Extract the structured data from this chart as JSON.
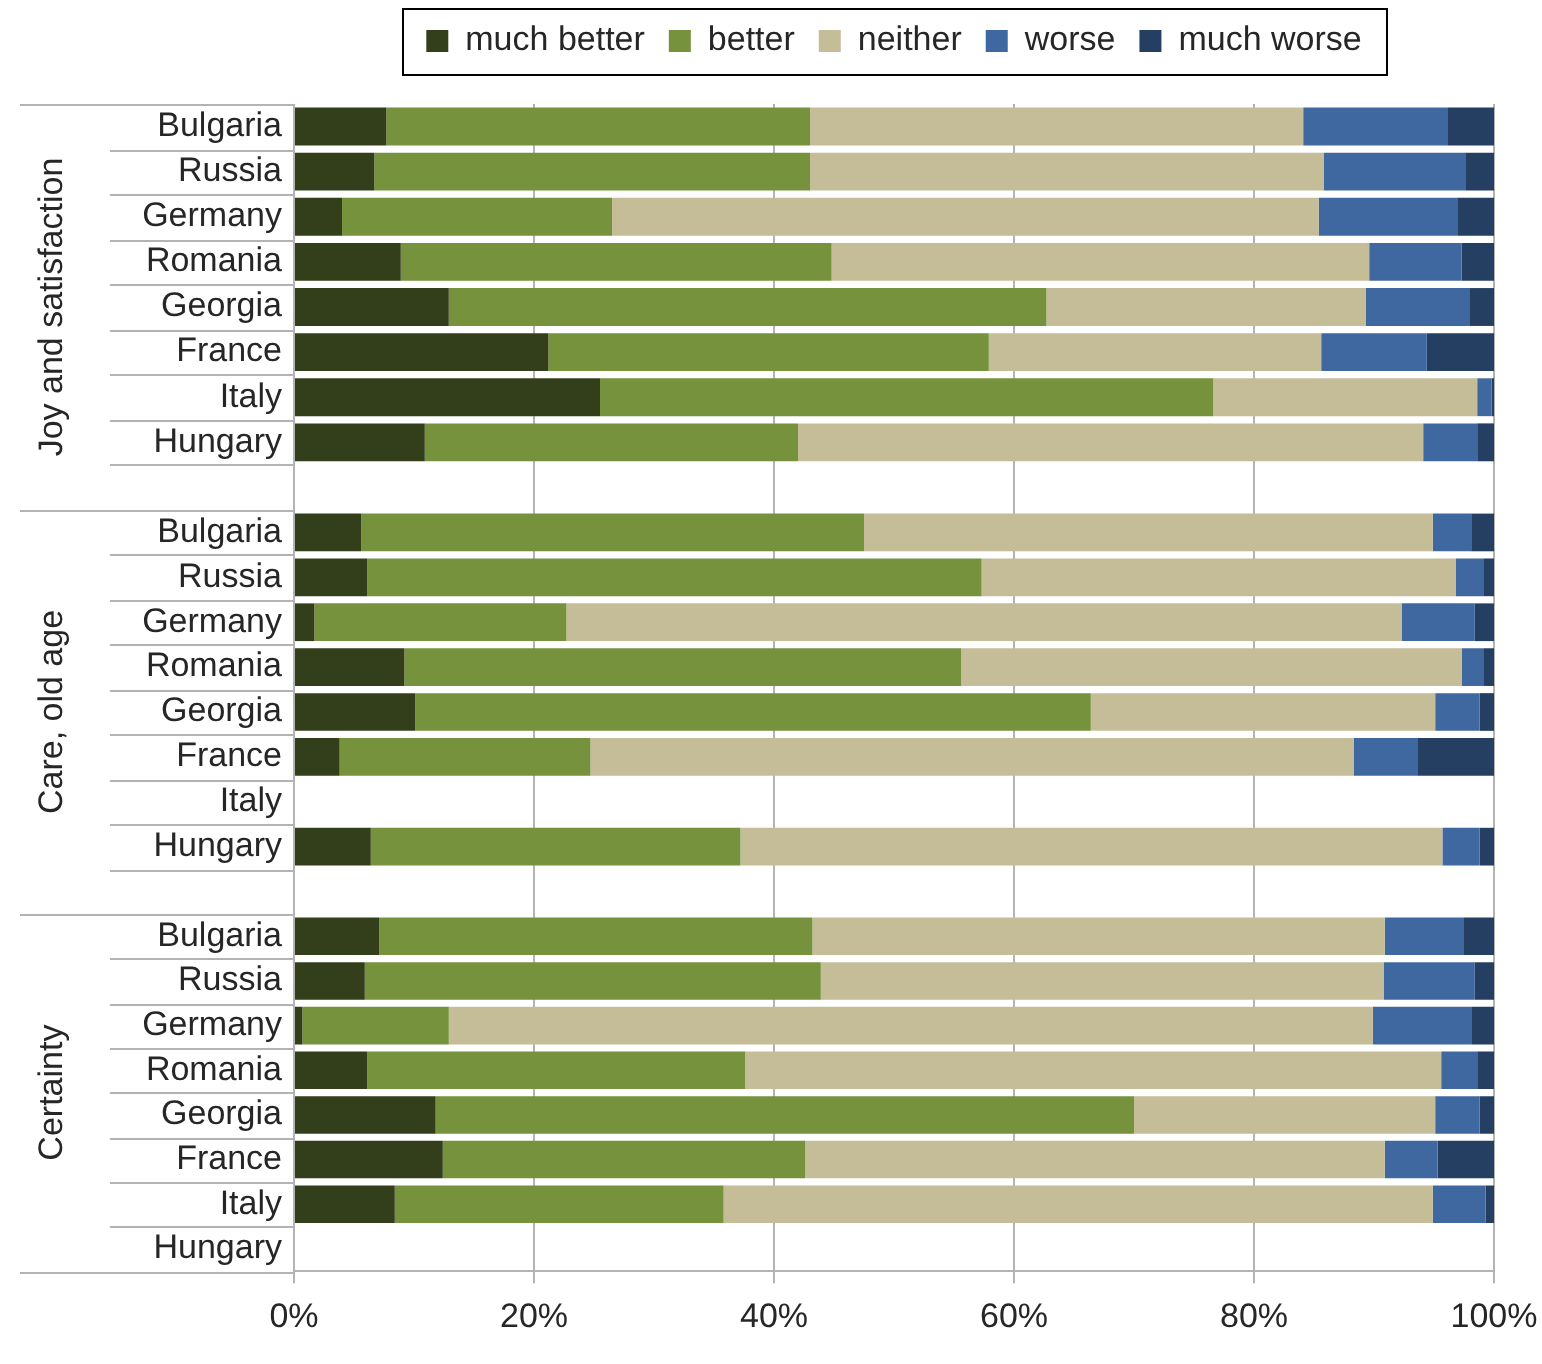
{
  "chart_data": [
    {
      "type": "bar",
      "orientation": "horizontal",
      "stacked": true,
      "ylabel": "Joy and satisfaction",
      "categories": [
        "Bulgaria",
        "Russia",
        "Germany",
        "Romania",
        "Georgia",
        "France",
        "Italy",
        "Hungary",
        null
      ],
      "series": [
        {
          "name": "much better",
          "color": "#333f1a",
          "values": [
            7.7,
            6.7,
            4.0,
            8.9,
            12.9,
            21.2,
            25.5,
            10.9,
            null
          ]
        },
        {
          "name": "better",
          "color": "#76923c",
          "values": [
            35.3,
            36.3,
            22.5,
            35.9,
            49.8,
            36.7,
            51.1,
            31.1,
            null
          ]
        },
        {
          "name": "neither",
          "color": "#c4bd97",
          "values": [
            41.1,
            42.8,
            58.9,
            44.8,
            26.6,
            27.7,
            22.0,
            52.1,
            null
          ]
        },
        {
          "name": "worse",
          "color": "#4068a0",
          "values": [
            12.0,
            11.8,
            11.6,
            7.7,
            8.7,
            8.8,
            1.2,
            4.5,
            null
          ]
        },
        {
          "name": "much worse",
          "color": "#253f62",
          "values": [
            3.9,
            2.4,
            3.0,
            2.7,
            2.0,
            5.6,
            0.2,
            1.4,
            null
          ]
        }
      ],
      "xlim": [
        0,
        100
      ],
      "xticks": [
        {
          "value": 0,
          "label": null
        },
        {
          "value": 20,
          "label": null
        },
        {
          "value": 40,
          "label": null
        },
        {
          "value": 60,
          "label": null
        },
        {
          "value": 80,
          "label": null
        },
        {
          "value": 100,
          "label": null
        }
      ],
      "grid": "x",
      "legend": "top",
      "tick_labels": "y"
    },
    {
      "type": "bar",
      "orientation": "horizontal",
      "stacked": true,
      "ylabel": "Care, old age",
      "categories": [
        "Bulgaria",
        "Russia",
        "Germany",
        "Romania",
        "Georgia",
        "France",
        "Italy",
        "Hungary",
        null
      ],
      "series": [
        {
          "color": "#333f1a",
          "values": [
            5.6,
            6.1,
            1.7,
            9.2,
            10.1,
            3.8,
            null,
            6.4,
            null
          ]
        },
        {
          "color": "#76923c",
          "values": [
            41.9,
            51.2,
            21.0,
            46.4,
            56.3,
            20.9,
            null,
            30.8,
            null
          ]
        },
        {
          "color": "#c4bd97",
          "values": [
            47.4,
            39.5,
            69.6,
            41.7,
            28.7,
            63.6,
            null,
            58.5,
            null
          ]
        },
        {
          "color": "#4068a0",
          "values": [
            3.2,
            2.3,
            6.1,
            1.8,
            3.7,
            5.3,
            null,
            3.1,
            null
          ]
        },
        {
          "color": "#253f62",
          "values": [
            1.9,
            0.9,
            1.6,
            0.9,
            1.2,
            6.4,
            null,
            1.2,
            null
          ]
        }
      ],
      "xlim": [
        0,
        100
      ],
      "xticks": [
        {
          "value": 0,
          "label": null
        },
        {
          "value": 20,
          "label": null
        },
        {
          "value": 40,
          "label": null
        },
        {
          "value": 60,
          "label": null
        },
        {
          "value": 80,
          "label": null
        },
        {
          "value": 100,
          "label": null
        }
      ],
      "grid": "x",
      "tick_labels": "y"
    },
    {
      "type": "bar",
      "orientation": "horizontal",
      "stacked": true,
      "ylabel": "Certainty",
      "categories": [
        "Bulgaria",
        "Russia",
        "Germany",
        "Romania",
        "Georgia",
        "France",
        "Italy",
        "Hungary"
      ],
      "series": [
        {
          "color": "#333f1a",
          "values": [
            7.1,
            5.9,
            0.7,
            6.1,
            11.8,
            12.4,
            8.4,
            null
          ]
        },
        {
          "color": "#76923c",
          "values": [
            36.1,
            38.0,
            12.2,
            31.5,
            58.2,
            30.2,
            27.4,
            null
          ]
        },
        {
          "color": "#c4bd97",
          "values": [
            47.7,
            46.9,
            77.0,
            58.0,
            25.1,
            48.3,
            59.1,
            null
          ]
        },
        {
          "color": "#4068a0",
          "values": [
            6.6,
            7.6,
            8.2,
            3.0,
            3.7,
            4.4,
            4.4,
            null
          ]
        },
        {
          "color": "#253f62",
          "values": [
            2.5,
            1.6,
            1.9,
            1.4,
            1.2,
            4.7,
            0.7,
            null
          ]
        }
      ],
      "xlim": [
        0,
        100
      ],
      "xticks": [
        {
          "value": 0,
          "label": "0%"
        },
        {
          "value": 20,
          "label": "20%"
        },
        {
          "value": 40,
          "label": "40%"
        },
        {
          "value": 60,
          "label": "60%"
        },
        {
          "value": 80,
          "label": "80%"
        },
        {
          "value": 100,
          "label": "100%"
        }
      ],
      "grid": "x"
    }
  ]
}
